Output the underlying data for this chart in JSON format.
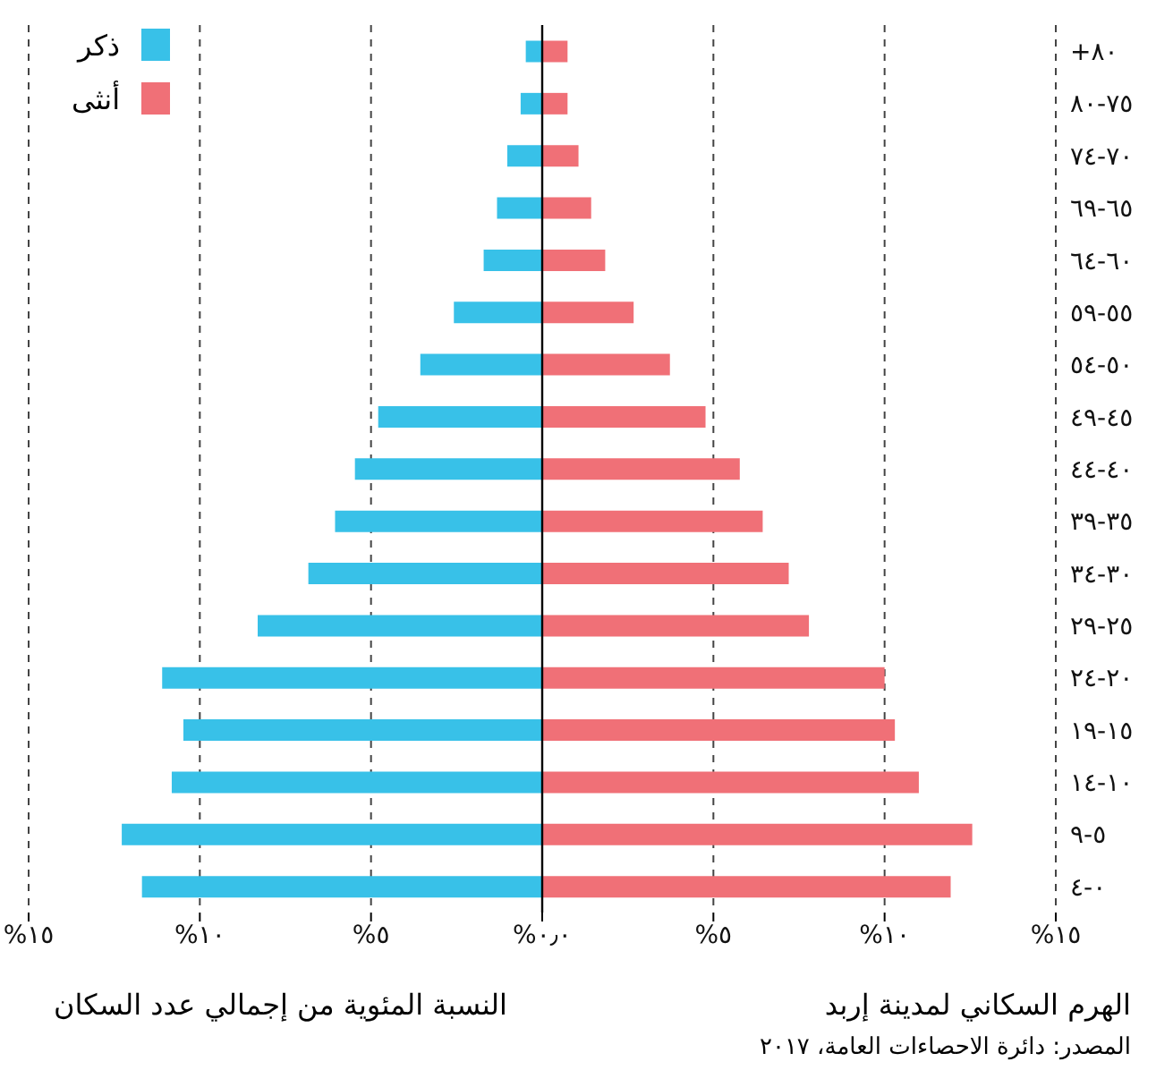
{
  "chart_data": {
    "type": "bar",
    "orientation": "horizontal",
    "stacked": true,
    "title": "الهرم السكاني لمدينة إربد",
    "xlabel": "النسبة المئوية من إجمالي عدد السكان",
    "annotations": [
      "المصدر: دائرة الاحصاءات العامة، ٢٠١٧"
    ],
    "categories": [
      "+٨٠",
      "٧٥-٨٠",
      "٧٠-٧٤",
      "٦٥-٦٩",
      "٦٠-٦٤",
      "٥٥-٥٩",
      "٥٠-٥٤",
      "٤٥-٤٩",
      "٤٠-٤٤",
      "٣٥-٣٩",
      "٣٠-٣٤",
      "٢٥-٢٩",
      "٢٠-٢٤",
      "١٥-١٩",
      "١٠-١٤",
      "٥-٩",
      "٠-٤"
    ],
    "series": [
      {
        "name": "ذكر",
        "color": "#38c1e8",
        "values": [
          -0.48,
          -0.63,
          -1.02,
          -1.32,
          -1.71,
          -2.58,
          -3.56,
          -4.79,
          -5.47,
          -6.05,
          -6.83,
          -8.31,
          -11.1,
          -10.48,
          -10.82,
          -12.28,
          -11.69
        ]
      },
      {
        "name": "أنثى",
        "color": "#f07077",
        "values": [
          0.74,
          0.74,
          1.06,
          1.43,
          1.84,
          2.67,
          3.73,
          4.77,
          5.77,
          6.44,
          7.2,
          7.79,
          10.0,
          10.3,
          11.0,
          12.56,
          11.93
        ]
      }
    ],
    "xlim": [
      -15,
      15
    ],
    "xticks": [
      {
        "value": -15,
        "label": "%١٥"
      },
      {
        "value": -10,
        "label": "%١٠"
      },
      {
        "value": -5,
        "label": "%٥"
      },
      {
        "value": 0,
        "label": "%٠٫٠"
      },
      {
        "value": 5,
        "label": "%٥"
      },
      {
        "value": 10,
        "label": "%١٠"
      },
      {
        "value": 15,
        "label": "%١٥"
      }
    ],
    "grid": "x",
    "legend": "top left",
    "ref_lines": [
      {
        "axis": "x",
        "value": 0
      }
    ]
  }
}
